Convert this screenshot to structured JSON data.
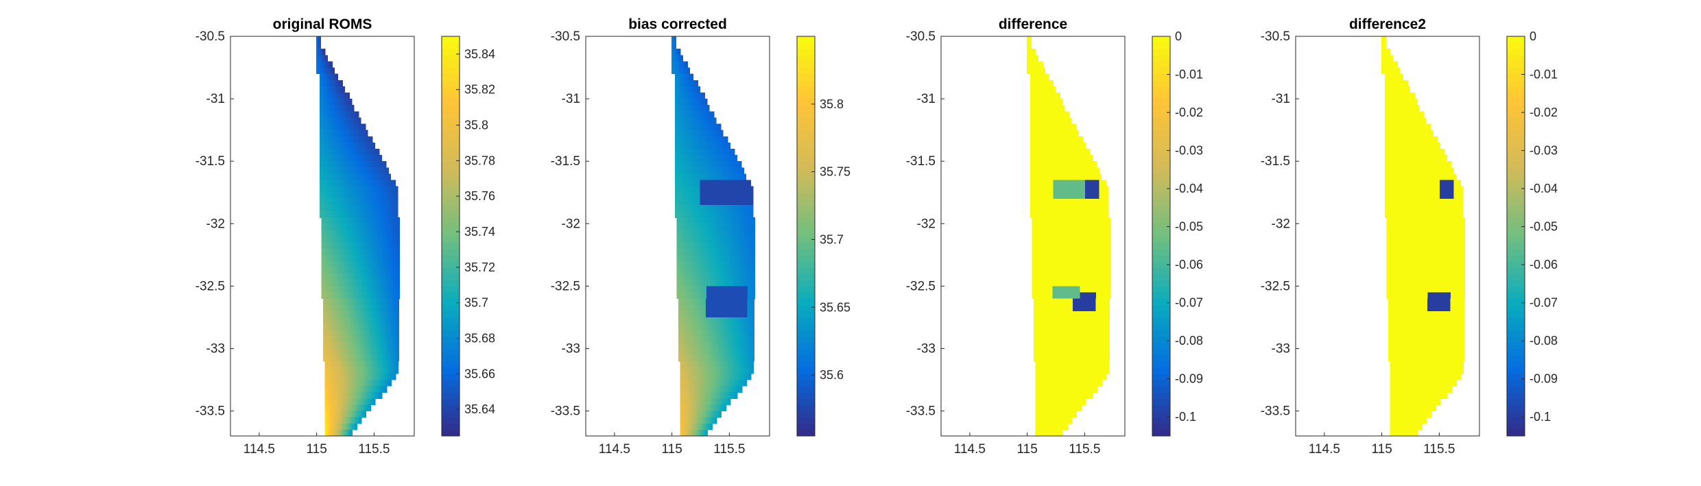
{
  "colormap": "parula",
  "colors": {
    "axis": "#262626",
    "background": "#ffffff"
  },
  "chart_data": [
    {
      "type": "heatmap",
      "title": "original ROMS",
      "xlim": [
        114.25,
        115.85
      ],
      "ylim": [
        -33.7,
        -30.5
      ],
      "xticks": [
        114.5,
        115,
        115.5
      ],
      "xticklabels": [
        "114.5",
        "115",
        "115.5"
      ],
      "yticks": [
        -30.5,
        -31,
        -31.5,
        -32,
        -32.5,
        -33,
        -33.5
      ],
      "yticklabels": [
        "-30.5",
        "-31",
        "-31.5",
        "-32",
        "-32.5",
        "-33",
        "-33.5"
      ],
      "clim": [
        35.625,
        35.85
      ],
      "cbticks": [
        35.64,
        35.66,
        35.68,
        35.7,
        35.72,
        35.74,
        35.76,
        35.78,
        35.8,
        35.82,
        35.84
      ],
      "cbticklabels": [
        "35.64",
        "35.66",
        "35.68",
        "35.7",
        "35.72",
        "35.74",
        "35.76",
        "35.78",
        "35.8",
        "35.82",
        "35.84"
      ],
      "field": "salinity",
      "patches": []
    },
    {
      "type": "heatmap",
      "title": "bias corrected",
      "xlim": [
        114.25,
        115.85
      ],
      "ylim": [
        -33.7,
        -30.5
      ],
      "xticks": [
        114.5,
        115,
        115.5
      ],
      "xticklabels": [
        "114.5",
        "115",
        "115.5"
      ],
      "yticks": [
        -30.5,
        -31,
        -31.5,
        -32,
        -32.5,
        -33,
        -33.5
      ],
      "yticklabels": [
        "-30.5",
        "-31",
        "-31.5",
        "-32",
        "-32.5",
        "-33",
        "-33.5"
      ],
      "clim": [
        35.555,
        35.85
      ],
      "cbticks": [
        35.6,
        35.65,
        35.7,
        35.75,
        35.8
      ],
      "cbticklabels": [
        "35.6",
        "35.65",
        "35.7",
        "35.75",
        "35.8"
      ],
      "field": "salinity_corrected",
      "patches": [
        {
          "x": [
            115.25,
            115.73
          ],
          "y": [
            -31.87,
            -31.63
          ],
          "value": 35.575
        },
        {
          "x": [
            115.3,
            115.65
          ],
          "y": [
            -32.75,
            -32.5
          ],
          "value": 35.58
        }
      ]
    },
    {
      "type": "heatmap",
      "title": "difference",
      "xlim": [
        114.25,
        115.85
      ],
      "ylim": [
        -33.7,
        -30.5
      ],
      "xticks": [
        114.5,
        115,
        115.5
      ],
      "xticklabels": [
        "114.5",
        "115",
        "115.5"
      ],
      "yticks": [
        -30.5,
        -31,
        -31.5,
        -32,
        -32.5,
        -33,
        -33.5
      ],
      "yticklabels": [
        "-30.5",
        "-31",
        "-31.5",
        "-32",
        "-32.5",
        "-33",
        "-33.5"
      ],
      "clim": [
        -0.105,
        0
      ],
      "cbticks": [
        0,
        -0.01,
        -0.02,
        -0.03,
        -0.04,
        -0.05,
        -0.06,
        -0.07,
        -0.08,
        -0.09,
        -0.1
      ],
      "cbticklabels": [
        "0",
        "-0.01",
        "-0.02",
        "-0.03",
        "-0.04",
        "-0.05",
        "-0.06",
        "-0.07",
        "-0.08",
        "-0.09",
        "-0.1"
      ],
      "field": "difference",
      "patches": [
        {
          "x": [
            115.22,
            115.5
          ],
          "y": [
            -31.78,
            -31.65
          ],
          "value": -0.055
        },
        {
          "x": [
            115.5,
            115.62
          ],
          "y": [
            -31.78,
            -31.63
          ],
          "value": -0.1
        },
        {
          "x": [
            115.22,
            115.45
          ],
          "y": [
            -32.62,
            -32.5
          ],
          "value": -0.055
        },
        {
          "x": [
            115.4,
            115.6
          ],
          "y": [
            -32.72,
            -32.55
          ],
          "value": -0.1
        }
      ]
    },
    {
      "type": "heatmap",
      "title": "difference2",
      "xlim": [
        114.25,
        115.85
      ],
      "ylim": [
        -33.7,
        -30.5
      ],
      "xticks": [
        114.5,
        115,
        115.5
      ],
      "xticklabels": [
        "114.5",
        "115",
        "115.5"
      ],
      "yticks": [
        -30.5,
        -31,
        -31.5,
        -32,
        -32.5,
        -33,
        -33.5
      ],
      "yticklabels": [
        "-30.5",
        "-31",
        "-31.5",
        "-32",
        "-32.5",
        "-33",
        "-33.5"
      ],
      "clim": [
        -0.105,
        0
      ],
      "cbticks": [
        0,
        -0.01,
        -0.02,
        -0.03,
        -0.04,
        -0.05,
        -0.06,
        -0.07,
        -0.08,
        -0.09,
        -0.1
      ],
      "cbticklabels": [
        "0",
        "-0.01",
        "-0.02",
        "-0.03",
        "-0.04",
        "-0.05",
        "-0.06",
        "-0.07",
        "-0.08",
        "-0.09",
        "-0.1"
      ],
      "field": "difference2",
      "patches": [
        {
          "x": [
            115.5,
            115.62
          ],
          "y": [
            -31.78,
            -31.63
          ],
          "value": -0.1
        },
        {
          "x": [
            115.4,
            115.6
          ],
          "y": [
            -32.72,
            -32.55
          ],
          "value": -0.1
        }
      ]
    }
  ]
}
